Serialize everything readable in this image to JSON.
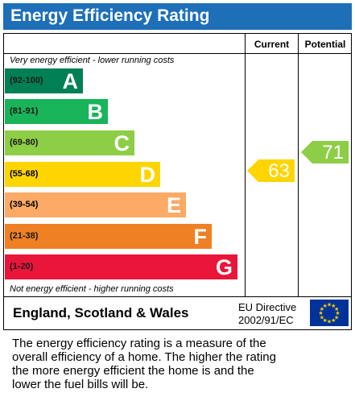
{
  "title": "Energy Efficiency Rating",
  "columns": {
    "current": "Current",
    "potential": "Potential"
  },
  "top_note": "Very energy efficient - lower running costs",
  "bottom_note": "Not energy efficient - higher running costs",
  "bands": [
    {
      "range": "(92-100)",
      "letter": "A",
      "color": "#008054"
    },
    {
      "range": "(81-91)",
      "letter": "B",
      "color": "#19b459"
    },
    {
      "range": "(69-80)",
      "letter": "C",
      "color": "#8dce46"
    },
    {
      "range": "(55-68)",
      "letter": "D",
      "color": "#ffd500"
    },
    {
      "range": "(39-54)",
      "letter": "E",
      "color": "#fcaa65"
    },
    {
      "range": "(21-38)",
      "letter": "F",
      "color": "#ef8023"
    },
    {
      "range": "(1-20)",
      "letter": "G",
      "color": "#e9153b"
    }
  ],
  "current": {
    "value": "63",
    "band": "D",
    "color": "#ffd500"
  },
  "potential": {
    "value": "71",
    "band": "C",
    "color": "#8dce46"
  },
  "footer": {
    "region": "England, Scotland & Wales",
    "directive_line1": "EU Directive",
    "directive_line2": "2002/91/EC"
  },
  "description": [
    "The energy efficiency rating is a measure of the",
    "overall efficiency of a home. The higher the rating",
    "the more energy efficient the home is and the",
    "lower the fuel bills will be."
  ]
}
